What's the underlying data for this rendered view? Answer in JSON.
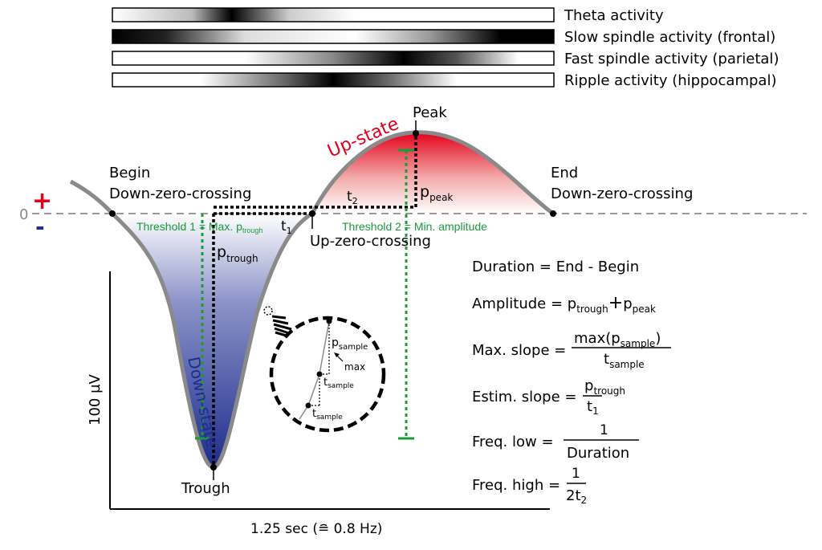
{
  "bands": [
    {
      "label": "Theta activity"
    },
    {
      "label": "Slow spindle activity (frontal)"
    },
    {
      "label": "Fast spindle activity (parietal)"
    },
    {
      "label": "Ripple activity (hippocampal)"
    }
  ],
  "zero": {
    "label": "0",
    "plus": "+",
    "minus": "-"
  },
  "labels": {
    "peak": "Peak",
    "up_state": "Up-state",
    "down_state": "Down-state",
    "begin": "Begin",
    "begin_sub": "Down-zero-crossing",
    "end": "End",
    "end_sub": "Down-zero-crossing",
    "up_zero": "Up-zero-crossing",
    "trough": "Trough",
    "t1": "t",
    "t1_sub": "1",
    "t2": "t",
    "t2_sub": "2",
    "p_peak": "p",
    "p_peak_sub": "peak",
    "p_trough": "p",
    "p_trough_sub": "trough",
    "threshold1": "Threshold 1 = Max. p",
    "threshold1_sub": "trough",
    "threshold2": "Threshold 2  = Min. amplitude",
    "p_sample": "p",
    "p_sample_sub": "sample",
    "max": "max",
    "t_sample_a": "t",
    "t_sample_a_sub": "sample",
    "t_sample_b": "t",
    "t_sample_b_sub": "sample"
  },
  "axes": {
    "y_scale": "100 µV",
    "x_scale": "1.25 sec (≘ 0.8 Hz)"
  },
  "formulas": {
    "duration": "Duration = End - Begin",
    "amplitude_lhs": "Amplitude = ",
    "amplitude_p1": "p",
    "amplitude_p1_sub": "trough",
    "amplitude_plus": "+",
    "amplitude_p2": "p",
    "amplitude_p2_sub": "peak",
    "max_slope_lhs": "Max. slope = ",
    "max_slope_num": "max(p",
    "max_slope_num_sub": "sample",
    "max_slope_num_close": ")",
    "max_slope_den": "t",
    "max_slope_den_sub": "sample",
    "estim_slope_lhs": "Estim. slope = ",
    "estim_slope_num": "p",
    "estim_slope_num_sub": "trough",
    "estim_slope_den": "t",
    "estim_slope_den_sub": "1",
    "freq_low_lhs": "Freq. low = ",
    "freq_low_num": "1",
    "freq_low_den": "Duration",
    "freq_high_lhs": "Freq. high = ",
    "freq_high_num": "1",
    "freq_high_den": "2t",
    "freq_high_den_sub": "2"
  },
  "colors": {
    "up_state": "#e2001a",
    "down_state": "#1e2d8c",
    "threshold": "#1a9a3a",
    "plus": "#e2001a",
    "minus": "#1e2d8c",
    "curve": "#8a8a8a"
  }
}
